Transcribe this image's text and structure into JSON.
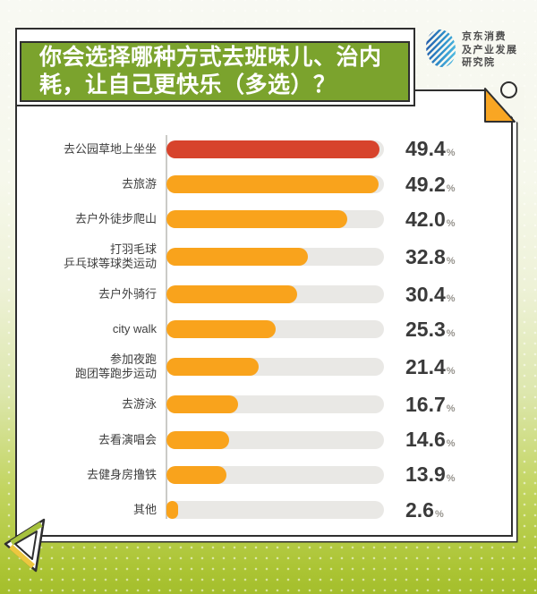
{
  "header": {
    "title_lines": [
      "你会选择哪种方式去班味儿、治内",
      "耗，让自己更快乐（多选）？"
    ]
  },
  "logo": {
    "lines": [
      "京东消费",
      "及产业发展",
      "研究院"
    ]
  },
  "chart_data": {
    "type": "bar",
    "orientation": "horizontal",
    "title": "你会选择哪种方式去班味儿、治内耗，让自己更快乐（多选）？",
    "categories": [
      "去公园草地上坐坐",
      "去旅游",
      "去户外徒步爬山",
      "打羽毛球\n乒乓球等球类运动",
      "去户外骑行",
      "city walk",
      "参加夜跑\n跑团等跑步运动",
      "去游泳",
      "去看演唱会",
      "去健身房撸铁",
      "其他"
    ],
    "values": [
      49.4,
      49.2,
      42.0,
      32.8,
      30.4,
      25.3,
      21.4,
      16.7,
      14.6,
      13.9,
      2.6
    ],
    "value_labels": [
      "49.4",
      "49.2",
      "42.0",
      "32.8",
      "30.4",
      "25.3",
      "21.4",
      "16.7",
      "14.6",
      "13.9",
      "2.6"
    ],
    "unit": "%",
    "xlim": [
      0,
      50.5
    ],
    "grid": false,
    "legend": false,
    "highlight_index": 0,
    "colors": {
      "highlight_bar": "#d7432c",
      "bar": "#f9a31c",
      "track": "#e9e8e5",
      "axis": "#cbcbc7"
    }
  },
  "theme": {
    "title_green": "#7ba32d",
    "card_border": "#2f2f2f",
    "background_top": "#f8f9f3",
    "background_bottom": "#a4be2c",
    "fold_orange": "#f9a623",
    "logo_blue_dark": "#2a63ae",
    "logo_blue_light": "#54c1e4"
  }
}
